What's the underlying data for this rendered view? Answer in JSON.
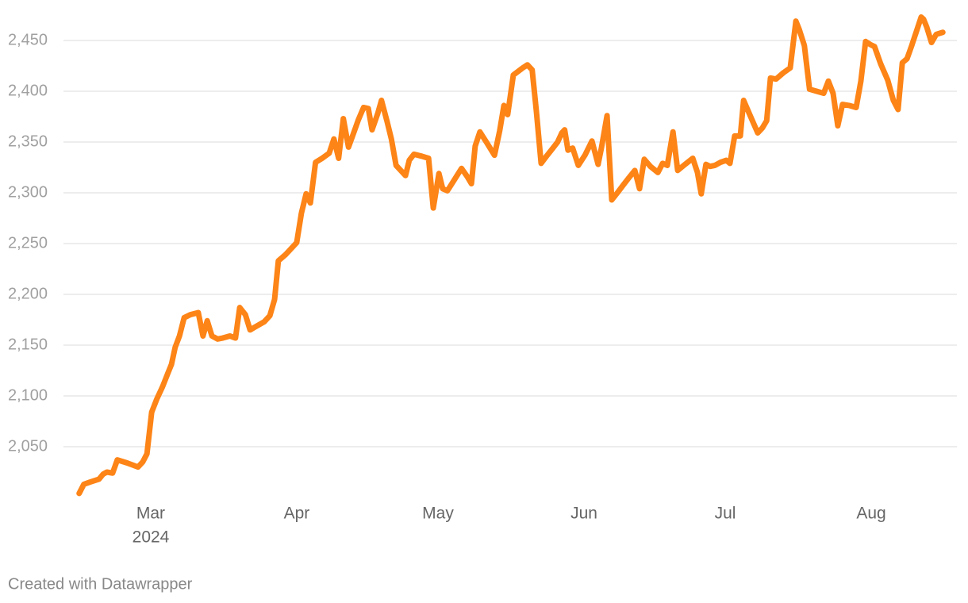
{
  "chart_data": {
    "type": "line",
    "color": "#fd8417",
    "x": [
      45.8,
      46.8,
      48.0,
      50.0,
      50.9,
      51.7,
      52.9,
      53.9,
      56.0,
      58.3,
      59.3,
      60.2,
      61.2,
      62.3,
      63.5,
      64.7,
      65.4,
      66.2,
      67.1,
      68.1,
      69.4,
      71.1,
      72.1,
      73.0,
      74.0,
      75.2,
      76.3,
      77.8,
      79.0,
      79.9,
      81.1,
      82.1,
      83.2,
      85.1,
      86.3,
      87.3,
      88.1,
      89.6,
      92.0,
      93.0,
      94.0,
      94.9,
      96.0,
      97.4,
      98.9,
      99.9,
      100.9,
      101.9,
      103.0,
      104.1,
      105.1,
      106.2,
      107.2,
      108.0,
      109.2,
      110.0,
      111.2,
      112.1,
      113.1,
      115.1,
      115.9,
      116.9,
      118.6,
      120.0,
      121.0,
      122.2,
      123.0,
      124.0,
      125.5,
      127.0,
      128.2,
      129.1,
      129.9,
      130.9,
      132.4,
      134.0,
      135.1,
      136.0,
      136.8,
      138.0,
      140.0,
      141.0,
      142.0,
      142.9,
      143.9,
      145.2,
      146.4,
      147.4,
      148.3,
      148.9,
      149.6,
      150.6,
      151.8,
      153.2,
      154.7,
      156.0,
      156.7,
      157.9,
      158.9,
      160.1,
      161.4,
      162.4,
      163.8,
      164.8,
      165.8,
      167.1,
      168.7,
      169.7,
      170.7,
      171.9,
      172.9,
      174.2,
      176.1,
      177.1,
      177.9,
      178.9,
      179.8,
      180.8,
      182.0,
      183.2,
      184.0,
      185.0,
      186.2,
      186.9,
      188.2,
      189.9,
      190.9,
      191.8,
      192.6,
      193.8,
      195.3,
      196.8,
      198.0,
      198.7,
      199.8,
      200.9,
      202.4,
      203.9,
      204.9,
      205.9,
      206.9,
      207.9,
      209.3,
      210.8,
      211.8,
      212.8,
      213.8,
      214.7,
      216.0,
      217.5,
      218.7,
      219.7,
      220.6,
      221.6,
      222.6,
      223.6,
      224.6,
      225.1,
      225.8,
      226.8,
      227.8,
      229.2
    ],
    "values": [
      2004,
      2013,
      2015,
      2018,
      2023,
      2025,
      2024,
      2037,
      2034,
      2030,
      2035,
      2043,
      2084,
      2097,
      2109,
      2123,
      2131,
      2148,
      2159,
      2177,
      2180,
      2182,
      2159,
      2174,
      2159,
      2156,
      2157,
      2159,
      2157,
      2187,
      2180,
      2165,
      2168,
      2173,
      2179,
      2195,
      2233,
      2239,
      2251,
      2280,
      2299,
      2290,
      2330,
      2334,
      2339,
      2353,
      2334,
      2373,
      2345,
      2359,
      2372,
      2384,
      2383,
      2362,
      2378,
      2391,
      2370,
      2353,
      2327,
      2317,
      2332,
      2338,
      2336,
      2334,
      2285,
      2319,
      2304,
      2302,
      2313,
      2324,
      2316,
      2309,
      2346,
      2360,
      2349,
      2337,
      2361,
      2386,
      2377,
      2416,
      2423,
      2426,
      2421,
      2380,
      2329,
      2337,
      2344,
      2350,
      2359,
      2362,
      2342,
      2344,
      2327,
      2337,
      2351,
      2328,
      2344,
      2376,
      2293,
      2300,
      2308,
      2314,
      2322,
      2304,
      2333,
      2326,
      2320,
      2329,
      2327,
      2360,
      2322,
      2327,
      2334,
      2320,
      2299,
      2328,
      2326,
      2327,
      2330,
      2332,
      2329,
      2356,
      2356,
      2391,
      2377,
      2359,
      2364,
      2371,
      2413,
      2412,
      2418,
      2423,
      2469,
      2461,
      2445,
      2402,
      2400,
      2398,
      2410,
      2398,
      2366,
      2387,
      2386,
      2384,
      2410,
      2449,
      2446,
      2444,
      2427,
      2411,
      2391,
      2382,
      2428,
      2432,
      2445,
      2459,
      2473,
      2471,
      2463,
      2448,
      2456,
      2458
    ],
    "xlim": [
      45,
      230
    ],
    "xticks": [
      {
        "value": 61,
        "label": "Mar"
      },
      {
        "value": 92,
        "label": "Apr"
      },
      {
        "value": 122,
        "label": "May"
      },
      {
        "value": 153,
        "label": "Jun"
      },
      {
        "value": 183,
        "label": "Jul"
      },
      {
        "value": 214,
        "label": "Aug"
      }
    ],
    "x_year_label": "2024",
    "ylim": [
      2000,
      2480
    ],
    "yticks": [
      {
        "value": 2050,
        "label": "2,050"
      },
      {
        "value": 2100,
        "label": "2,100"
      },
      {
        "value": 2150,
        "label": "2,150"
      },
      {
        "value": 2200,
        "label": "2,200"
      },
      {
        "value": 2250,
        "label": "2,250"
      },
      {
        "value": 2300,
        "label": "2,300"
      },
      {
        "value": 2350,
        "label": "2,350"
      },
      {
        "value": 2400,
        "label": "2,400"
      },
      {
        "value": 2450,
        "label": "2,450"
      }
    ],
    "grid": true,
    "footer": "Created with Datawrapper"
  }
}
